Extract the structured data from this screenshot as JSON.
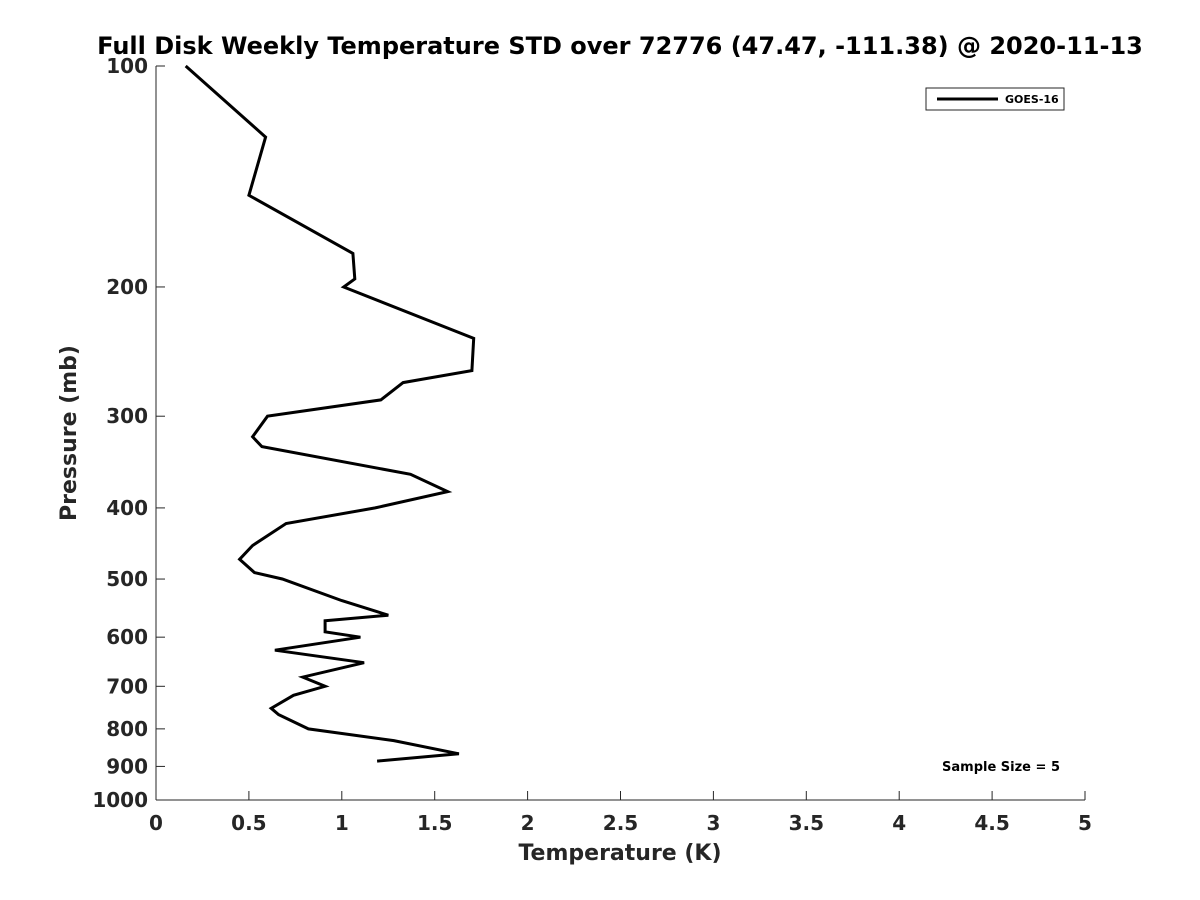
{
  "chart_data": {
    "type": "line",
    "title": "Full Disk Weekly Temperature STD over 72776 (47.47, -111.38) @ 2020-11-13",
    "xlabel": "Temperature (K)",
    "ylabel": "Pressure (mb)",
    "xlim": [
      0,
      5
    ],
    "ylim": [
      1000,
      100
    ],
    "yscale": "log",
    "y_reversed": true,
    "grid": false,
    "legend_position": "top-right",
    "x_ticks": [
      "0",
      "0.5",
      "1",
      "1.5",
      "2",
      "2.5",
      "3",
      "3.5",
      "4",
      "4.5",
      "5"
    ],
    "y_ticks": [
      "100",
      "200",
      "300",
      "400",
      "500",
      "600",
      "700",
      "800",
      "900",
      "1000"
    ],
    "series": [
      {
        "name": "GOES-16",
        "color": "#000000",
        "x": [
          0.16,
          0.59,
          0.5,
          1.06,
          1.07,
          1.01,
          1.71,
          1.7,
          1.33,
          1.21,
          0.6,
          0.52,
          0.57,
          1.37,
          1.57,
          1.18,
          0.7,
          0.52,
          0.45,
          0.53,
          0.68,
          1.0,
          1.25,
          0.91,
          0.91,
          1.1,
          0.64,
          1.12,
          0.79,
          0.91,
          0.74,
          0.62,
          0.66,
          0.82,
          1.28,
          1.63,
          1.19
        ],
        "y": [
          100,
          125,
          150,
          180,
          195,
          200,
          235,
          260,
          270,
          285,
          300,
          320,
          330,
          360,
          380,
          400,
          420,
          450,
          470,
          490,
          500,
          535,
          560,
          570,
          590,
          600,
          625,
          650,
          680,
          700,
          720,
          750,
          765,
          800,
          830,
          865,
          885
        ]
      }
    ],
    "annotations": [
      "Sample Size = 5"
    ]
  }
}
